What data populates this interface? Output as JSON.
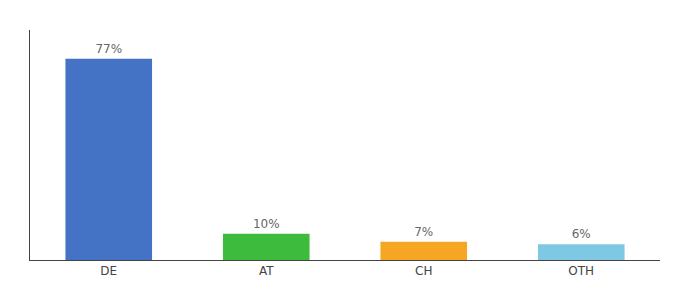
{
  "chart_data": {
    "type": "bar",
    "categories": [
      "DE",
      "AT",
      "CH",
      "OTH"
    ],
    "values": [
      77,
      10,
      7,
      6
    ],
    "value_labels": [
      "77%",
      "10%",
      "7%",
      "6%"
    ],
    "colors": [
      "#4472c4",
      "#3dbb3d",
      "#f5a623",
      "#7ec8e3"
    ],
    "ylim": [
      0,
      88
    ],
    "data_labels": true,
    "tick_labels": "x",
    "grid": false
  }
}
